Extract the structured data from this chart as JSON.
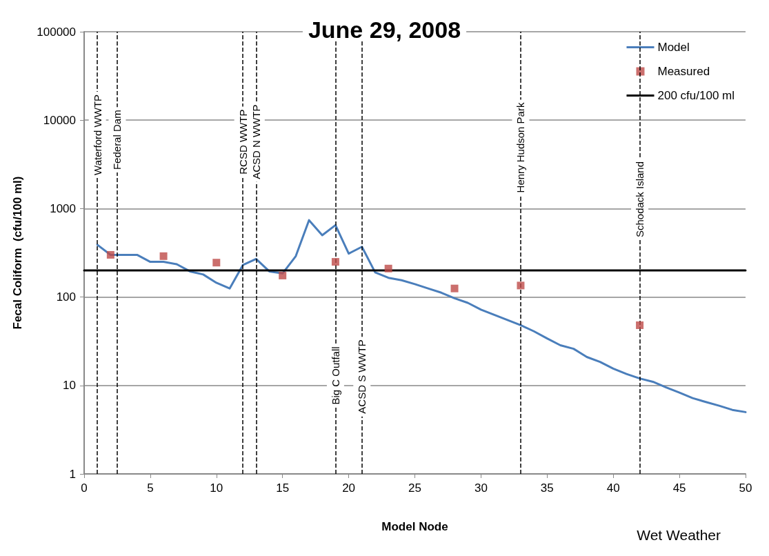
{
  "chart_data": {
    "type": "line",
    "title": "June 29, 2008",
    "xlabel": "Model Node",
    "ylabel": "Fecal Coliform  (cfu/100 ml)",
    "log": "y",
    "xlim": [
      0,
      50
    ],
    "xticks": [
      0,
      5,
      10,
      15,
      20,
      25,
      30,
      35,
      40,
      45,
      50
    ],
    "ylim": [
      1,
      100000
    ],
    "yticks": [
      1,
      10,
      100,
      1000,
      10000,
      100000
    ],
    "grid": "y",
    "legend": "top right",
    "series": [
      {
        "name": "Model",
        "color": "#4a7ebb",
        "marker": "none",
        "x": [
          1,
          2,
          3,
          4,
          5,
          6,
          7,
          8,
          9,
          10,
          11,
          12,
          13,
          14,
          15,
          16,
          17,
          18,
          19,
          20,
          21,
          22,
          23,
          24,
          25,
          26,
          27,
          28,
          29,
          30,
          31,
          32,
          33,
          34,
          35,
          36,
          37,
          38,
          39,
          40,
          41,
          42,
          43,
          44,
          45,
          46,
          47,
          48,
          49,
          50
        ],
        "values": [
          390,
          300,
          300,
          300,
          250,
          250,
          235,
          195,
          180,
          145,
          125,
          230,
          270,
          195,
          185,
          290,
          740,
          500,
          650,
          310,
          370,
          190,
          165,
          155,
          140,
          125,
          112,
          97,
          86,
          72,
          63,
          55,
          48,
          41,
          34,
          28.5,
          26,
          21,
          18.5,
          15.5,
          13.5,
          12,
          11,
          9.5,
          8.3,
          7.2,
          6.5,
          5.9,
          5.3,
          5
        ]
      },
      {
        "name": "Measured",
        "type": "scatter",
        "color": "#be4b48",
        "marker": "square",
        "x": [
          2,
          6,
          10,
          15,
          19,
          23,
          28,
          33,
          42
        ],
        "values": [
          300,
          290,
          245,
          175,
          250,
          210,
          125,
          135,
          48
        ]
      },
      {
        "name": "200 cfu/100 ml",
        "color": "#000000",
        "marker": "none",
        "x": [
          0,
          50
        ],
        "values": [
          200,
          200
        ]
      }
    ],
    "ref_lines": [
      {
        "axis": "x",
        "value": 1,
        "label": "Waterford WWTP",
        "color": "#000000",
        "line_style": "dashed"
      },
      {
        "axis": "x",
        "value": 2.5,
        "label": "Federal Dam",
        "color": "#000000",
        "line_style": "dashed"
      },
      {
        "axis": "x",
        "value": 12,
        "label": "RCSD WWTP",
        "color": "#000000",
        "line_style": "dashed"
      },
      {
        "axis": "x",
        "value": 13,
        "label": "ACSD N WWTP",
        "color": "#000000",
        "line_style": "dashed"
      },
      {
        "axis": "x",
        "value": 19,
        "label": "Big C Outfall",
        "color": "#000000",
        "line_style": "dashed"
      },
      {
        "axis": "x",
        "value": 21,
        "label": "ACSD S WWTP",
        "color": "#000000",
        "line_style": "dashed"
      },
      {
        "axis": "x",
        "value": 33,
        "label": "Henry Hudson Park",
        "color": "#000000",
        "line_style": "dashed"
      },
      {
        "axis": "x",
        "value": 42,
        "label": "Schodack Island",
        "color": "#000000",
        "line_style": "dashed"
      }
    ],
    "annotations": [
      "Wet Weather"
    ]
  }
}
